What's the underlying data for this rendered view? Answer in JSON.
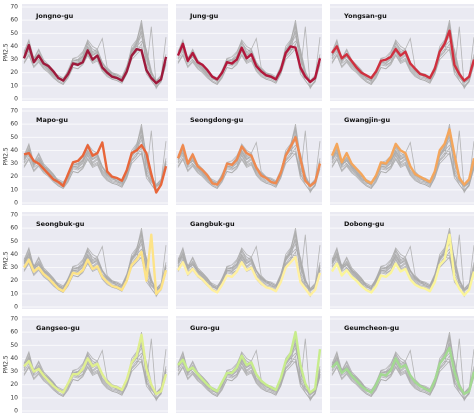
{
  "chart_data": {
    "type": "line",
    "y_label": "PM2.5",
    "ylim": [
      0,
      70
    ],
    "yticks": [
      0,
      10,
      20,
      30,
      40,
      50,
      60,
      70
    ],
    "grid": true,
    "background_color": "#aaaaaa",
    "series": [
      {
        "name": "Jongno-gu",
        "color": "#9e1a3c",
        "values": [
          31,
          41,
          28,
          33,
          27,
          25,
          21,
          16,
          14,
          19,
          27,
          26,
          28,
          37,
          30,
          33,
          24,
          20,
          17,
          16,
          14,
          21,
          33,
          38,
          37,
          22,
          16,
          12,
          15,
          32
        ]
      },
      {
        "name": "Jung-gu",
        "color": "#b2183c",
        "values": [
          33,
          42,
          29,
          35,
          28,
          26,
          22,
          17,
          15,
          20,
          28,
          27,
          30,
          39,
          31,
          34,
          25,
          21,
          18,
          17,
          15,
          22,
          35,
          40,
          39,
          24,
          17,
          13,
          16,
          31
        ]
      },
      {
        "name": "Yongsan-gu",
        "color": "#d0303f",
        "values": [
          35,
          40,
          31,
          34,
          29,
          24,
          20,
          18,
          16,
          21,
          29,
          30,
          32,
          38,
          33,
          36,
          27,
          23,
          19,
          18,
          16,
          23,
          36,
          42,
          52,
          26,
          19,
          14,
          17,
          30
        ]
      },
      {
        "name": "Mapo-gu",
        "color": "#e8663a",
        "values": [
          37,
          38,
          32,
          30,
          26,
          22,
          18,
          16,
          13,
          22,
          31,
          32,
          36,
          44,
          36,
          38,
          46,
          24,
          20,
          19,
          17,
          25,
          38,
          40,
          44,
          38,
          22,
          8,
          14,
          28
        ]
      },
      {
        "name": "Seongdong-gu",
        "color": "#ef8a50",
        "values": [
          34,
          44,
          30,
          37,
          28,
          25,
          21,
          15,
          14,
          19,
          30,
          29,
          33,
          43,
          38,
          36,
          27,
          21,
          19,
          16,
          15,
          23,
          36,
          43,
          50,
          34,
          17,
          13,
          16,
          30
        ]
      },
      {
        "name": "Gwangjin-gu",
        "color": "#f4a65c",
        "values": [
          36,
          45,
          31,
          38,
          30,
          26,
          22,
          17,
          15,
          21,
          31,
          30,
          35,
          45,
          40,
          38,
          28,
          22,
          20,
          18,
          16,
          24,
          40,
          45,
          56,
          37,
          19,
          14,
          18,
          34
        ]
      },
      {
        "name": "Seongbuk-gu",
        "color": "#fde387",
        "values": [
          30,
          36,
          27,
          30,
          25,
          22,
          18,
          14,
          12,
          18,
          26,
          25,
          28,
          36,
          29,
          31,
          23,
          19,
          16,
          15,
          13,
          20,
          32,
          36,
          42,
          20,
          55,
          10,
          14,
          28
        ]
      },
      {
        "name": "Gangbuk-gu",
        "color": "#fff0a0",
        "values": [
          28,
          34,
          25,
          29,
          24,
          21,
          17,
          13,
          11,
          17,
          24,
          23,
          27,
          34,
          28,
          30,
          22,
          18,
          15,
          14,
          12,
          19,
          30,
          34,
          38,
          19,
          14,
          9,
          13,
          26
        ]
      },
      {
        "name": "Dobong-gu",
        "color": "#fbf59a",
        "values": [
          27,
          33,
          24,
          28,
          23,
          20,
          16,
          13,
          11,
          16,
          24,
          23,
          26,
          33,
          27,
          29,
          21,
          17,
          15,
          14,
          12,
          19,
          32,
          36,
          55,
          22,
          14,
          9,
          13,
          27
        ]
      },
      {
        "name": "Gangseo-gu",
        "color": "#dfef8f",
        "values": [
          34,
          38,
          30,
          32,
          27,
          23,
          19,
          16,
          14,
          21,
          28,
          28,
          32,
          40,
          34,
          36,
          28,
          22,
          19,
          18,
          16,
          24,
          37,
          42,
          58,
          32,
          20,
          13,
          15,
          28
        ]
      },
      {
        "name": "Guro-gu",
        "color": "#c7ec8c",
        "values": [
          35,
          39,
          31,
          33,
          28,
          24,
          20,
          17,
          15,
          22,
          29,
          29,
          33,
          42,
          35,
          37,
          28,
          23,
          20,
          18,
          16,
          25,
          38,
          44,
          60,
          35,
          21,
          14,
          17,
          47
        ]
      },
      {
        "name": "Geumcheon-gu",
        "color": "#a3d992",
        "values": [
          33,
          37,
          29,
          32,
          27,
          23,
          19,
          16,
          14,
          20,
          28,
          27,
          31,
          40,
          33,
          35,
          27,
          22,
          19,
          17,
          15,
          23,
          36,
          41,
          48,
          30,
          19,
          13,
          15,
          30
        ]
      }
    ]
  }
}
